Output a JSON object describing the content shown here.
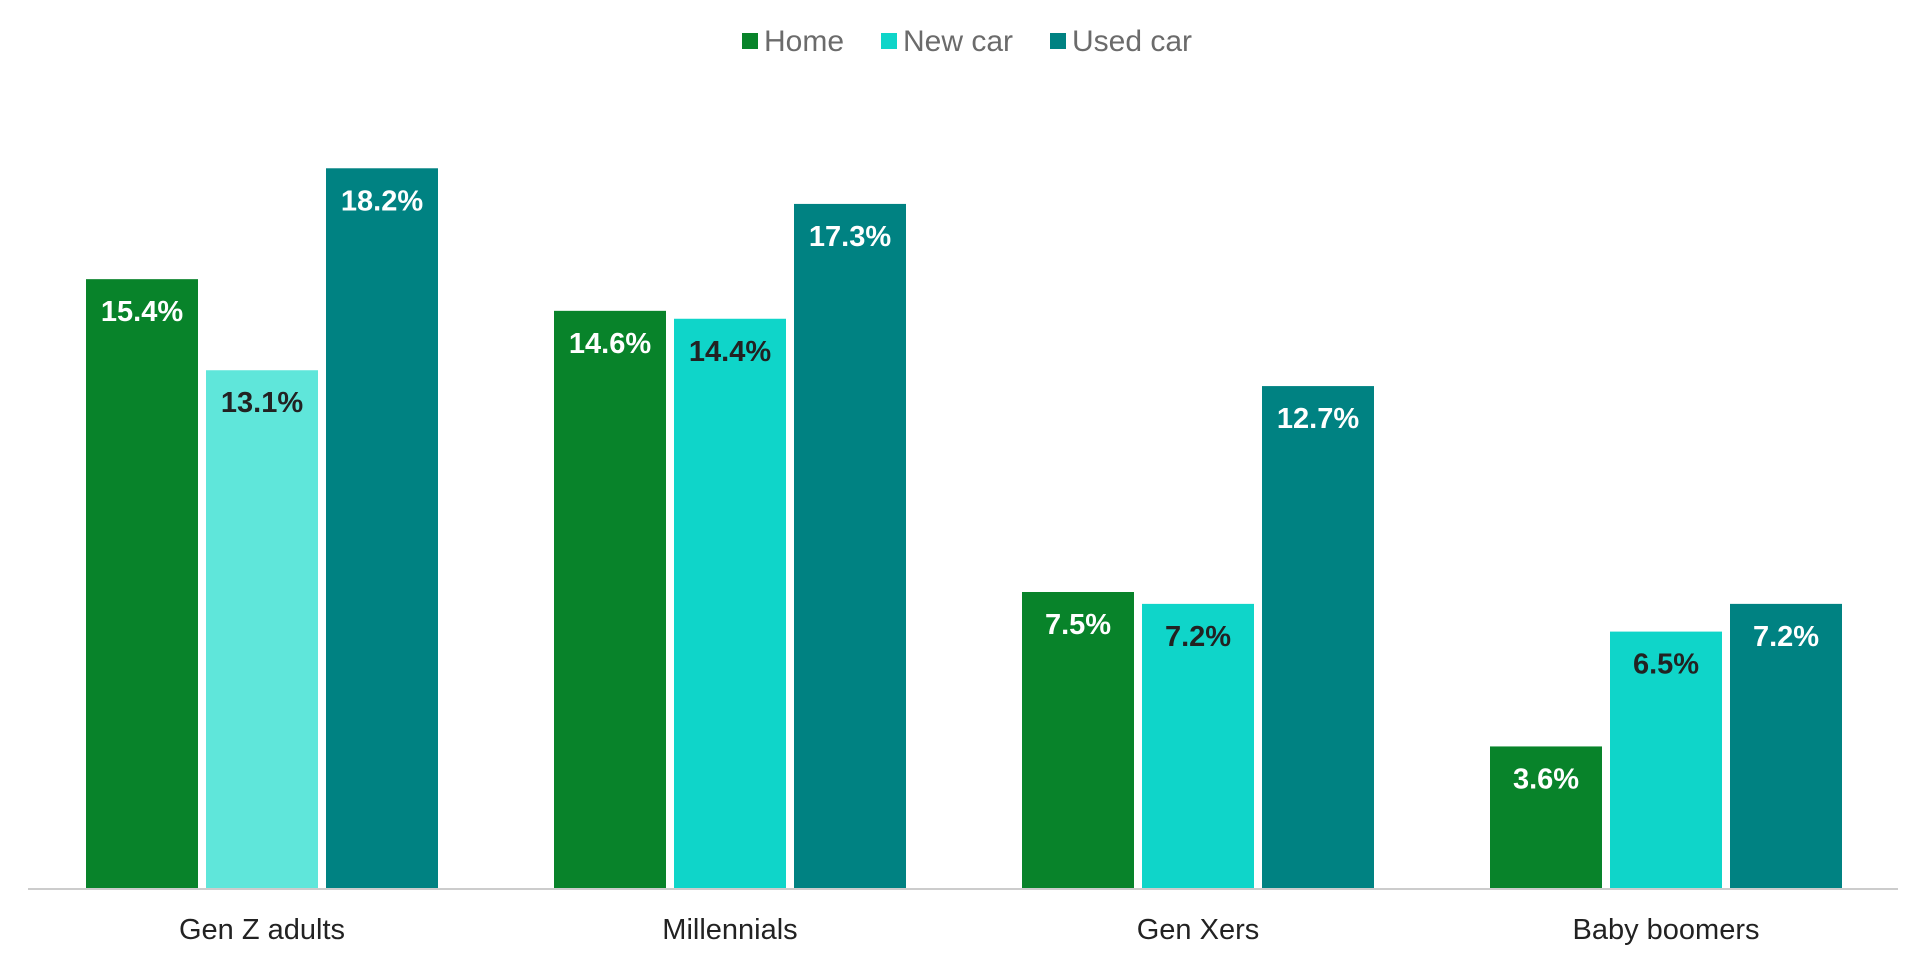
{
  "chart_data": {
    "type": "bar",
    "categories": [
      "Gen Z adults",
      "Millennials",
      "Gen Xers",
      "Baby boomers"
    ],
    "series": [
      {
        "name": "Home",
        "legend_color": "#08832a",
        "values": [
          15.4,
          14.6,
          7.5,
          3.6
        ],
        "colors": [
          "#08832a",
          "#08832a",
          "#08832a",
          "#08832a"
        ],
        "label_colors": [
          "#ffffff",
          "#ffffff",
          "#ffffff",
          "#ffffff"
        ],
        "labels": [
          "15.4%",
          "14.6%",
          "7.5%",
          "3.6%"
        ]
      },
      {
        "name": "New car",
        "legend_color": "#0fd5c9",
        "values": [
          13.1,
          14.4,
          7.2,
          6.5
        ],
        "colors": [
          "#5fe6da",
          "#0fd5c9",
          "#0fd5c9",
          "#0fd5c9"
        ],
        "label_colors": [
          "#222222",
          "#222222",
          "#222222",
          "#222222"
        ],
        "labels": [
          "13.1%",
          "14.4%",
          "7.2%",
          "6.5%"
        ]
      },
      {
        "name": "Used car",
        "legend_color": "#008282",
        "values": [
          18.2,
          17.3,
          12.7,
          7.2
        ],
        "colors": [
          "#008282",
          "#008282",
          "#008282",
          "#008282"
        ],
        "label_colors": [
          "#ffffff",
          "#ffffff",
          "#ffffff",
          "#ffffff"
        ],
        "labels": [
          "18.2%",
          "17.3%",
          "12.7%",
          "7.2%"
        ]
      }
    ],
    "ylim": [
      0,
      20
    ],
    "grid": false,
    "legend_position": "top-center",
    "baseline_color": "#cccccc",
    "title": "",
    "xlabel": "",
    "ylabel": ""
  }
}
